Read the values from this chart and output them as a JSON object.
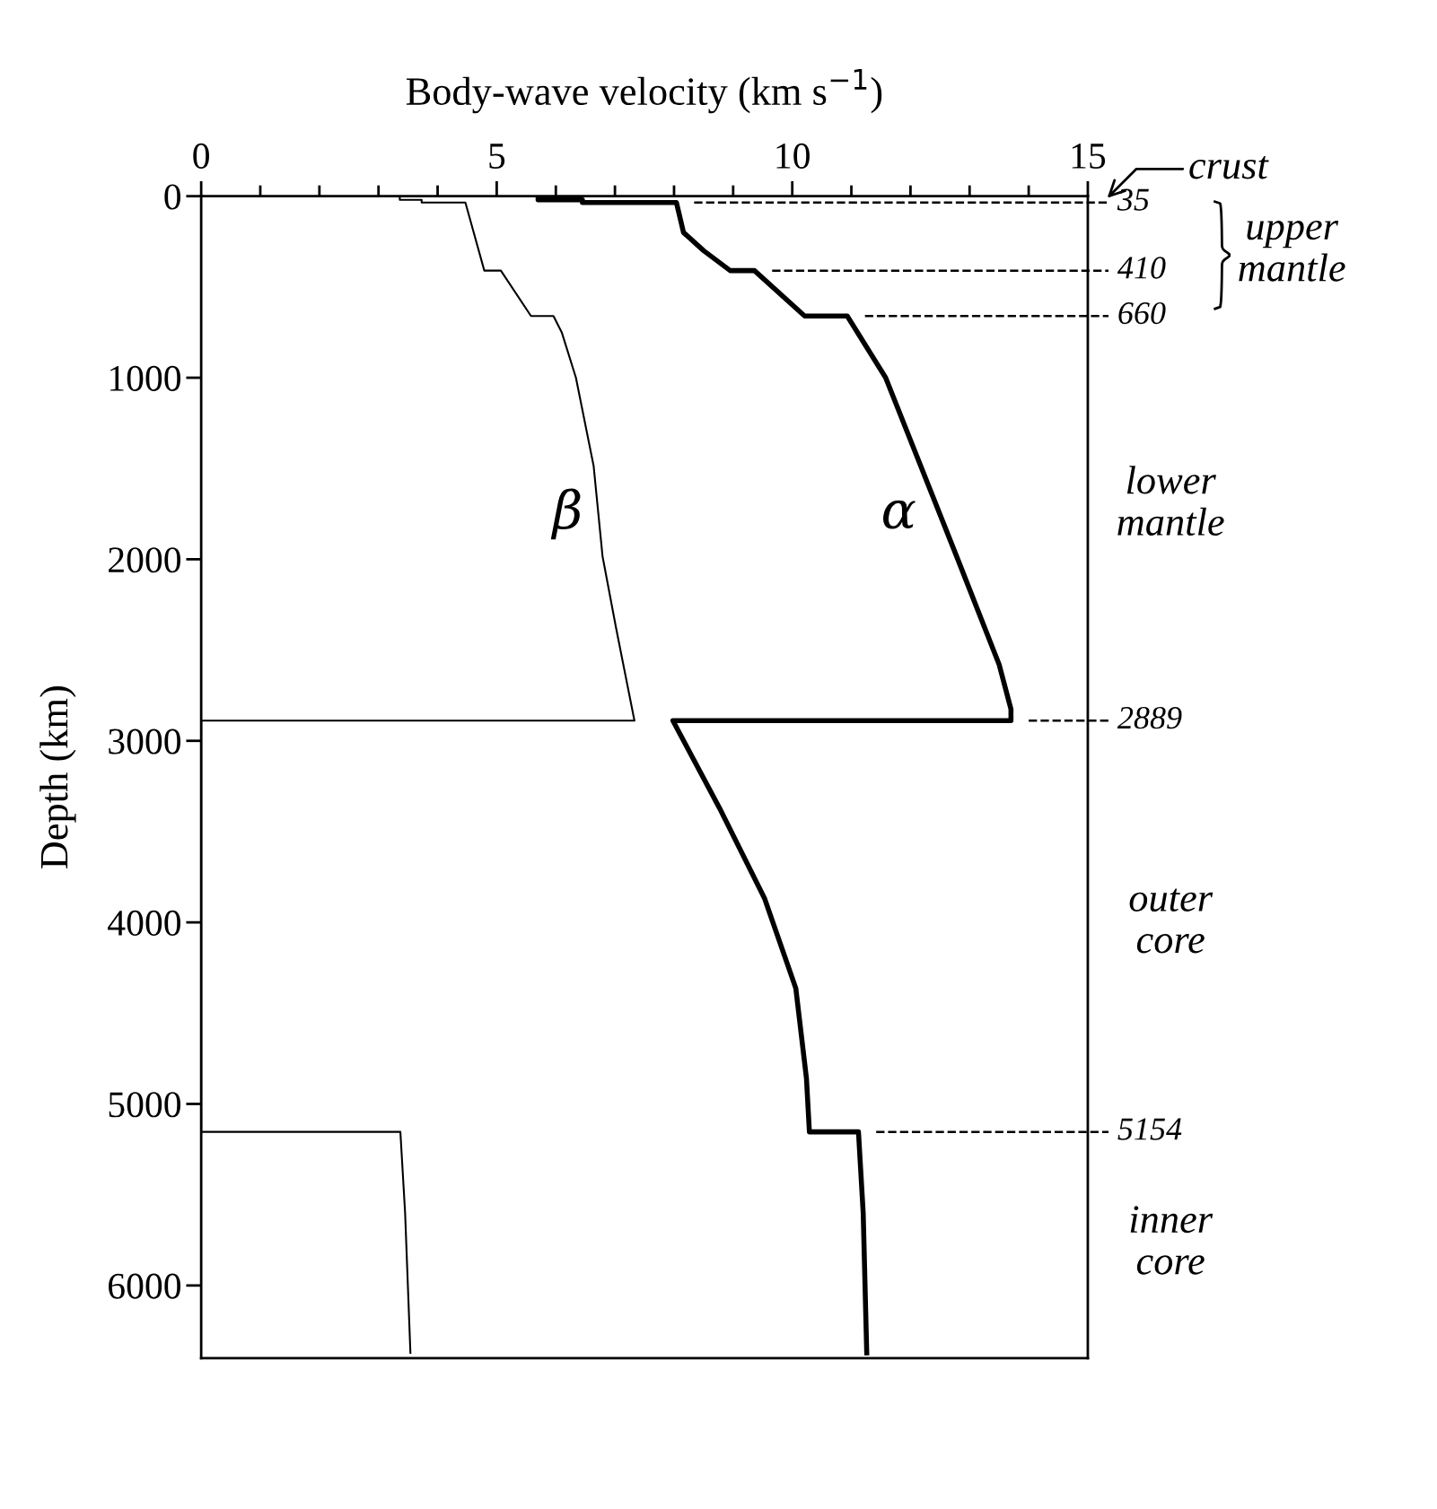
{
  "chart_data": {
    "type": "line",
    "xlabel": "Body-wave velocity (km s$^{−1}$)",
    "ylabel": "Depth (km)",
    "orientation": "horizontal",
    "xlim": [
      0,
      15
    ],
    "xticks": [
      0,
      {
        "value": 1,
        "label": null
      },
      {
        "value": 2,
        "label": null
      },
      {
        "value": 3,
        "label": null
      },
      {
        "value": 4,
        "label": null
      },
      5,
      {
        "value": 6,
        "label": null
      },
      {
        "value": 7,
        "label": null
      },
      {
        "value": 8,
        "label": null
      },
      {
        "value": 9,
        "label": null
      },
      10,
      {
        "value": 11,
        "label": null
      },
      {
        "value": 12,
        "label": null
      },
      {
        "value": 13,
        "label": null
      },
      {
        "value": 14,
        "label": null
      },
      15
    ],
    "ylim": [
      6400,
      0
    ],
    "yticks": [
      0,
      1000,
      2000,
      3000,
      4000,
      5000,
      6000
    ],
    "grid": false,
    "legend": false,
    "marker": "none",
    "series": [
      {
        "name": "β",
        "color": "#000000",
        "values": [
          3.36,
          3.36,
          3.73,
          3.73,
          4.47,
          4.79,
          5.07,
          5.58,
          5.96,
          6.1,
          6.34,
          6.64,
          6.79,
          7.02,
          7.33,
          0,
          0,
          3.37,
          3.45,
          3.54
        ],
        "x": [
          0,
          20,
          20,
          35,
          35,
          410,
          410,
          660,
          660,
          750,
          1000,
          1487,
          1983,
          2380,
          2889,
          2889,
          5154,
          5154,
          5600,
          6371
        ]
      },
      {
        "name": "α",
        "color": "#000000",
        "values": [
          5.7,
          5.7,
          6.45,
          6.45,
          8.04,
          8.16,
          8.5,
          8.95,
          9.36,
          10.21,
          10.93,
          11.58,
          12.8,
          13.5,
          13.7,
          13.7,
          7.98,
          8.77,
          9.53,
          10.06,
          10.24,
          10.29,
          11.12,
          11.2,
          11.26
        ],
        "x": [
          0,
          20,
          20,
          35,
          35,
          200,
          300,
          410,
          410,
          660,
          660,
          1000,
          2000,
          2580,
          2826,
          2889,
          2889,
          3371,
          3867,
          4363,
          4859,
          5154,
          5154,
          5600,
          6371
        ]
      }
    ],
    "ref_lines": [
      {
        "axis": "y",
        "value": 35,
        "label": "35",
        "line_style": "dashed"
      },
      {
        "axis": "y",
        "value": 410,
        "label": "410",
        "line_style": "dashed"
      },
      {
        "axis": "y",
        "value": 660,
        "label": "660",
        "line_style": "dashed"
      },
      {
        "axis": "y",
        "value": 2889,
        "label": "2889",
        "line_style": "dashed"
      },
      {
        "axis": "y",
        "value": 5154,
        "label": "5154",
        "line_style": "dashed"
      }
    ],
    "annotations": [
      "crust",
      "upper\nmantle",
      "lower\nmantle",
      "outer\ncore",
      "inner\ncore"
    ]
  }
}
